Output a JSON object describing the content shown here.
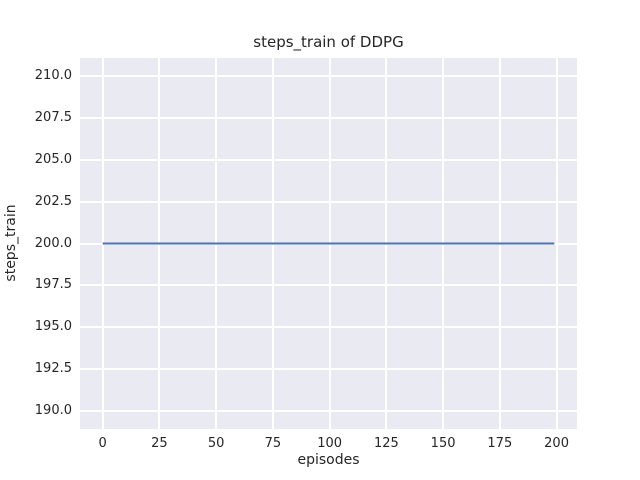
{
  "chart_data": {
    "type": "line",
    "title": "steps_train of DDPG",
    "xlabel": "episodes",
    "ylabel": "steps_train",
    "x": [
      0,
      199
    ],
    "series": [
      {
        "name": "steps_train",
        "color": "#4c72b0",
        "values": [
          200,
          200
        ]
      }
    ],
    "xticks": {
      "values": [
        0,
        25,
        50,
        75,
        100,
        125,
        150,
        175,
        200
      ],
      "labels": [
        "0",
        "25",
        "50",
        "75",
        "100",
        "125",
        "150",
        "175",
        "200"
      ]
    },
    "yticks": {
      "values": [
        190.0,
        192.5,
        195.0,
        197.5,
        200.0,
        202.5,
        205.0,
        207.5,
        210.0
      ],
      "labels": [
        "190.0",
        "192.5",
        "195.0",
        "197.5",
        "200.0",
        "202.5",
        "205.0",
        "207.5",
        "210.0"
      ]
    },
    "xlim": [
      -10.0,
      209.0
    ],
    "ylim": [
      188.9,
      211.1
    ],
    "grid": true,
    "legend": false,
    "colors": {
      "plot_background": "#eaeaf2",
      "figure_background": "#ffffff",
      "grid_color": "#ffffff",
      "line_color": "#4c72b0",
      "text_color": "#262626"
    }
  }
}
